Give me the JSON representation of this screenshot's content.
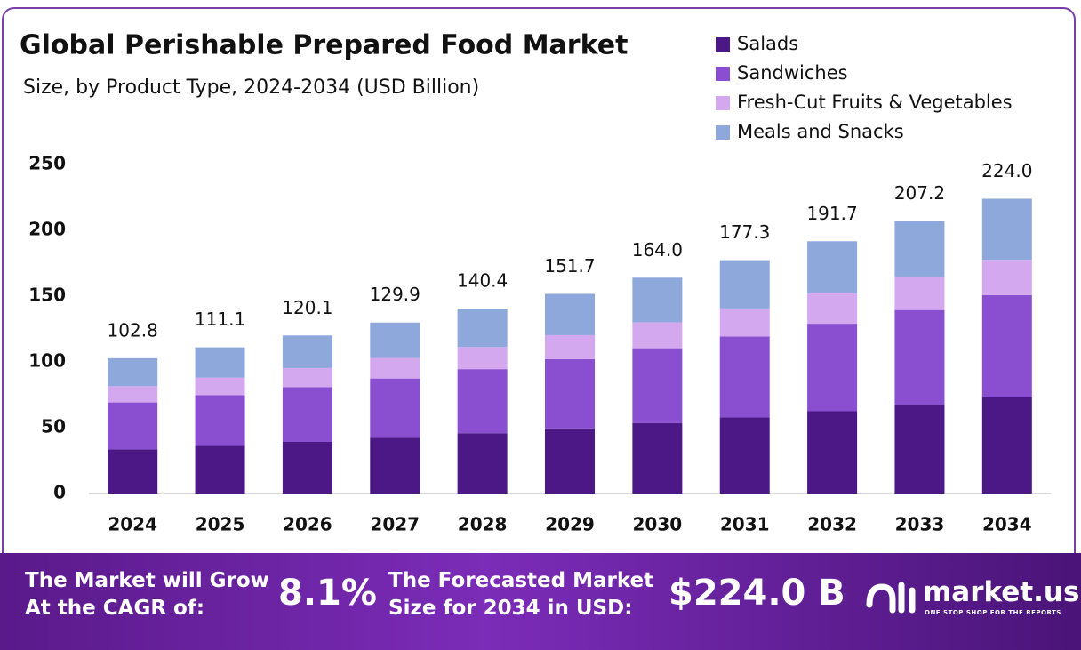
{
  "chart_data": {
    "type": "stacked-bar",
    "title": "Global Perishable Prepared Food Market",
    "subtitle": "Size, by Product Type, 2024-2034 (USD Billion)",
    "categories": [
      "2024",
      "2025",
      "2026",
      "2027",
      "2028",
      "2029",
      "2030",
      "2031",
      "2032",
      "2033",
      "2034"
    ],
    "series": [
      {
        "name": "Salads",
        "color": "#4b1886",
        "values": [
          33.5,
          36.2,
          39.2,
          42.3,
          45.8,
          49.5,
          53.5,
          57.8,
          62.5,
          67.5,
          73.0
        ]
      },
      {
        "name": "Sandwiches",
        "color": "#8a4fd0",
        "values": [
          35.7,
          38.6,
          41.7,
          45.1,
          48.7,
          52.6,
          56.9,
          61.5,
          66.5,
          71.9,
          77.7
        ]
      },
      {
        "name": "Fresh-Cut Fruits & Vegetables",
        "color": "#d4a8ee",
        "values": [
          12.3,
          13.3,
          14.4,
          15.6,
          16.8,
          18.2,
          19.7,
          21.3,
          23.0,
          24.9,
          26.9
        ]
      },
      {
        "name": "Meals and Snacks",
        "color": "#8fa8dc",
        "values": [
          21.3,
          23.0,
          24.8,
          26.9,
          29.1,
          31.4,
          33.9,
          36.7,
          39.7,
          42.9,
          46.4
        ]
      }
    ],
    "totals": {
      "values": [
        102.8,
        111.1,
        120.1,
        129.9,
        140.4,
        151.7,
        164.0,
        177.3,
        191.7,
        207.2,
        224.0
      ],
      "value_labels": [
        "102.8",
        "111.1",
        "120.1",
        "129.9",
        "140.4",
        "151.7",
        "164.0",
        "177.3",
        "191.7",
        "207.2",
        "224.0"
      ]
    },
    "ylim": [
      0,
      250
    ],
    "yticks": [
      0,
      50,
      100,
      150,
      200,
      250
    ],
    "grid": false,
    "legend": "top-right"
  },
  "footer": {
    "cagr_text": "The Market will Grow At the CAGR of:",
    "cagr_value": "8.1%",
    "forecast_text": "The Forecasted Market Size for 2034 in USD:",
    "forecast_value": "$224.0 B",
    "brand": "market.us",
    "tagline": "ONE STOP SHOP FOR THE REPORTS"
  }
}
